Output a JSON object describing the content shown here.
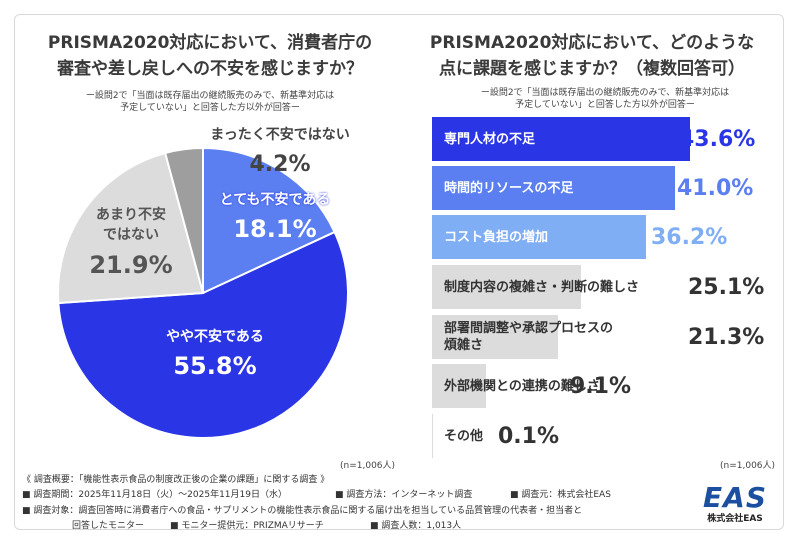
{
  "left": {
    "title_line1": "PRISMA2020対応において、消費者庁の",
    "title_line2": "審査や差し戻しへの不安を感じますか？",
    "sub_line1": "ー設問2で「当面は既存届出の継続販売のみで、新基準対応は",
    "sub_line2": "予定していない」と回答した方以外が回答ー",
    "n": "(n=1,006人)"
  },
  "right": {
    "title_line1": "PRISMA2020対応において、どのような",
    "title_line2": "点に課題を感じますか？（複数回答可）",
    "sub_line1": "ー設問2で「当面は既存届出の継続販売のみで、新基準対応は",
    "sub_line2": "予定していない」と回答した方以外が回答ー",
    "n": "(n=1,006人)"
  },
  "chart_data": [
    {
      "type": "pie",
      "labels": [
        "とても不安である",
        "やや不安である",
        "あまり不安ではない",
        "まったく不安ではない"
      ],
      "values": [
        18.1,
        55.8,
        21.9,
        4.2
      ],
      "value_labels": [
        "18.1%",
        "55.8%",
        "21.9%",
        "4.2%"
      ],
      "colors": [
        "#5b7ff0",
        "#2a35e6",
        "#dcdcdc",
        "#9e9e9e"
      ]
    },
    {
      "type": "bar",
      "orientation": "horizontal",
      "categories": [
        "専門人材の不足",
        "時間的リソースの不足",
        "コスト負担の増加",
        "制度内容の複雑さ・判断の難しさ",
        "部署間調整や承認プロセスの煩雑さ",
        "外部機関との連携の難しさ",
        "その他"
      ],
      "values": [
        43.6,
        41.0,
        36.2,
        25.1,
        21.3,
        9.1,
        0.1
      ],
      "value_labels": [
        "43.6%",
        "41.0%",
        "36.2%",
        "25.1%",
        "21.3%",
        "9.1%",
        "0.1%"
      ],
      "colors": [
        "#2a35e6",
        "#5b7ff0",
        "#7faef5",
        "#dcdcdc",
        "#dcdcdc",
        "#dcdcdc",
        "#dcdcdc"
      ],
      "value_colors": [
        "#2a35e6",
        "#5b7ff0",
        "#7faef5",
        "#333333",
        "#333333",
        "#333333",
        "#333333"
      ]
    }
  ],
  "footer": {
    "line1": "《 調査概要：「機能性表示食品の制度改正後の企業の課題」に関する調査 》",
    "line2a": "■ 調査期間：2025年11月18日（火）～2025年11月19日（水）",
    "line2b": "■ 調査方法：インターネット調査",
    "line2c": "■ 調査元：株式会社EAS",
    "line3": "■ 調査対象：調査回答時に消費者庁への食品・サプリメントの機能性表示食品に関する届け出を担当している品質管理の代表者・担当者と",
    "line4a": "回答したモニター",
    "line4b": "■ モニター提供元：PRIZMAリサーチ",
    "line4c": "■ 調査人数：1,013人"
  },
  "logo": {
    "mark": "EAS",
    "name": "株式会社EAS",
    "color": "#1c4fa0"
  }
}
